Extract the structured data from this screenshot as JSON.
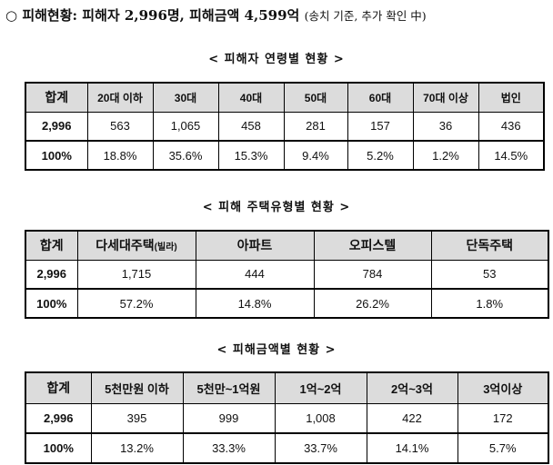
{
  "heading": {
    "bullet": "○",
    "main": "피해현황: 피해자 2,996명, 피해금액 4,599억",
    "paren": "(송치 기준, 추가 확인 中)"
  },
  "age_table": {
    "title": "< 피해자 연령별 현황 >",
    "headers": [
      "합계",
      "20대 이하",
      "30대",
      "40대",
      "50대",
      "60대",
      "70대 이상",
      "법인"
    ],
    "count_row": [
      "2,996",
      "563",
      "1,065",
      "458",
      "281",
      "157",
      "36",
      "436"
    ],
    "percent_row": [
      "100%",
      "18.8%",
      "35.6%",
      "15.3%",
      "9.4%",
      "5.2%",
      "1.2%",
      "14.5%"
    ]
  },
  "housing_table": {
    "title": "< 피해 주택유형별 현황 >",
    "headers": [
      "합계",
      "다세대주택",
      "아파트",
      "오피스텔",
      "단독주택"
    ],
    "header_note": "(빌라)",
    "count_row": [
      "2,996",
      "1,715",
      "444",
      "784",
      "53"
    ],
    "percent_row": [
      "100%",
      "57.2%",
      "14.8%",
      "26.2%",
      "1.8%"
    ]
  },
  "amount_table": {
    "title": "< 피해금액별 현황 >",
    "headers": [
      "합계",
      "5천만원 이하",
      "5천만~1억원",
      "1억~2억",
      "2억~3억",
      "3억이상"
    ],
    "count_row": [
      "2,996",
      "395",
      "999",
      "1,008",
      "422",
      "172"
    ],
    "percent_row": [
      "100%",
      "13.2%",
      "33.3%",
      "33.7%",
      "14.1%",
      "5.7%"
    ]
  }
}
